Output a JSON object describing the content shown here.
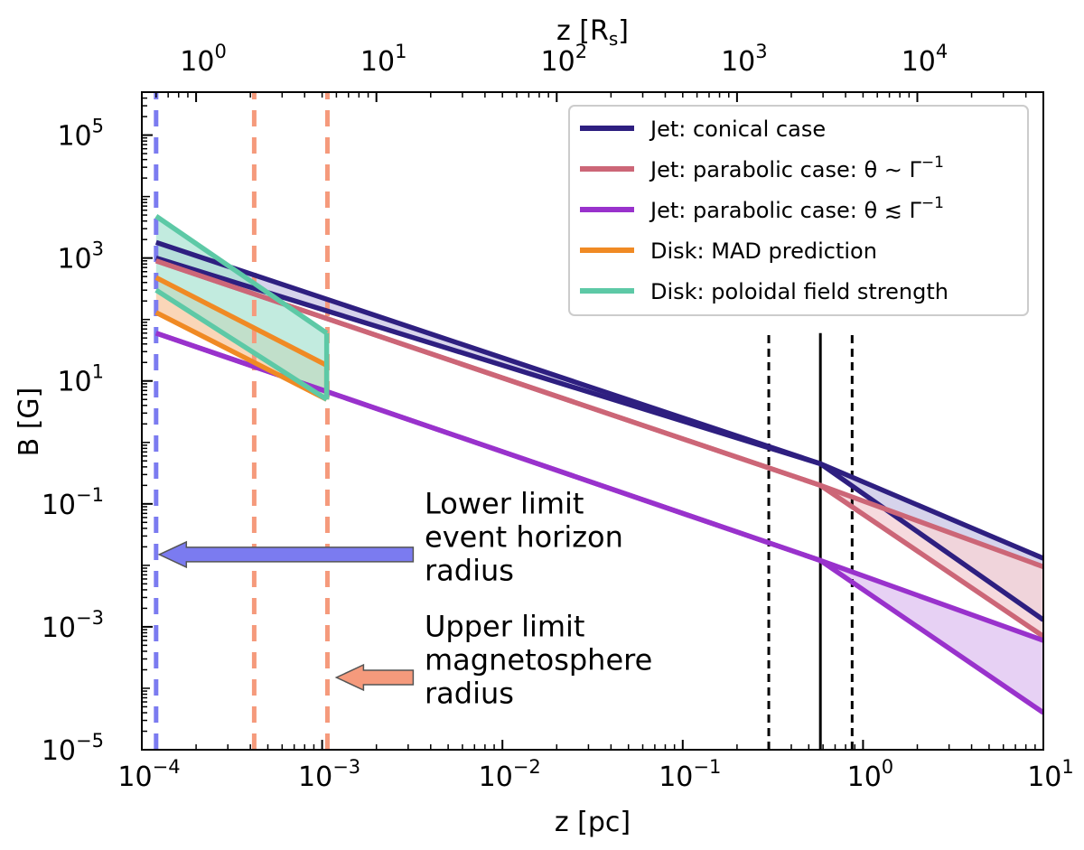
{
  "chart_data": {
    "type": "line",
    "xscale": "log",
    "yscale": "log",
    "xlabel": "z [pc]",
    "ylabel": "B [G]",
    "top_xlabel": "z [R",
    "top_xlabel_sub": "s",
    "top_xlabel_end": "]",
    "xlim": [
      0.0001,
      10
    ],
    "ylim": [
      1e-05,
      500000
    ],
    "top_axis_rs_per_pc": 5000,
    "x_ticks": [
      {
        "value": 0.0001,
        "base": "10",
        "exp": "−4"
      },
      {
        "value": 0.001,
        "base": "10",
        "exp": "−3"
      },
      {
        "value": 0.01,
        "base": "10",
        "exp": "−2"
      },
      {
        "value": 0.1,
        "base": "10",
        "exp": "−1"
      },
      {
        "value": 1,
        "base": "10",
        "exp": "0"
      },
      {
        "value": 10,
        "base": "10",
        "exp": "1"
      }
    ],
    "y_ticks": [
      {
        "value": 1e-05,
        "base": "10",
        "exp": "−5"
      },
      {
        "value": 0.001,
        "base": "10",
        "exp": "−3"
      },
      {
        "value": 0.1,
        "base": "10",
        "exp": "−1"
      },
      {
        "value": 10,
        "base": "10",
        "exp": "1"
      },
      {
        "value": 1000,
        "base": "10",
        "exp": "3"
      },
      {
        "value": 100000,
        "base": "10",
        "exp": "5"
      }
    ],
    "top_ticks": [
      {
        "value": 1,
        "base": "10",
        "exp": "0"
      },
      {
        "value": 10,
        "base": "10",
        "exp": "1"
      },
      {
        "value": 100,
        "base": "10",
        "exp": "2"
      },
      {
        "value": 1000,
        "base": "10",
        "exp": "3"
      },
      {
        "value": 10000,
        "base": "10",
        "exp": "4"
      }
    ],
    "bands": [
      {
        "name": "Jet: conical case",
        "color": "#2e1f80",
        "fill": "#cfcbe8",
        "upper": {
          "x": [
            0.00012,
            0.58,
            10
          ],
          "y": [
            1800,
            0.45,
            0.013
          ]
        },
        "lower": {
          "x": [
            0.00012,
            0.58,
            10
          ],
          "y": [
            1000,
            0.45,
            0.0013
          ]
        },
        "fill_alpha": 0.85
      },
      {
        "name": "Jet: parabolic case: θ ~ Γ⁻¹",
        "color": "#cc6677",
        "fill": "#f5d3d8",
        "upper": {
          "x": [
            0.00012,
            0.58,
            10
          ],
          "y": [
            900,
            0.2,
            0.0095
          ]
        },
        "lower": {
          "x": [
            0.00012,
            0.58,
            10
          ],
          "y": [
            900,
            0.2,
            0.0007
          ]
        },
        "fill_alpha": 0.85
      },
      {
        "name": "Jet: parabolic case: θ ≲ Γ⁻¹",
        "color": "#9932cc",
        "fill": "#e3c9f2",
        "upper": {
          "x": [
            0.00012,
            0.58,
            10
          ],
          "y": [
            60,
            0.012,
            0.0006
          ]
        },
        "lower": {
          "x": [
            0.00012,
            0.58,
            10
          ],
          "y": [
            60,
            0.012,
            4e-05
          ]
        },
        "fill_alpha": 0.85
      },
      {
        "name": "Disk: MAD prediction",
        "color": "#f08a24",
        "fill": "#f8c8a0",
        "upper": {
          "x": [
            0.00012,
            0.00106
          ],
          "y": [
            480,
            18
          ]
        },
        "lower": {
          "x": [
            0.00012,
            0.00106
          ],
          "y": [
            130,
            5
          ]
        },
        "fill_alpha": 0.75
      },
      {
        "name": "Disk: poloidal field strength",
        "color": "#5dc9a6",
        "fill": "#a8e3d1",
        "upper": {
          "x": [
            0.00012,
            0.00106
          ],
          "y": [
            4800,
            60
          ]
        },
        "lower": {
          "x": [
            0.00012,
            0.00106
          ],
          "y": [
            300,
            5
          ]
        },
        "fill_alpha": 0.7
      }
    ],
    "vlines": [
      {
        "x": 0.00012,
        "color": "#7b7bf0",
        "style": "dashed",
        "width": 5
      },
      {
        "x": 0.00042,
        "color": "#f59a7c",
        "style": "dashed",
        "width": 5
      },
      {
        "x": 0.00107,
        "color": "#f59a7c",
        "style": "dashed",
        "width": 5
      },
      {
        "x": 0.3,
        "color": "#000000",
        "style": "dashed-thin",
        "width": 3,
        "ymax": 60
      },
      {
        "x": 0.58,
        "color": "#000000",
        "style": "solid",
        "width": 3,
        "ymax": 60
      },
      {
        "x": 0.87,
        "color": "#000000",
        "style": "dashed-thin",
        "width": 3,
        "ymax": 60
      }
    ],
    "legend": {
      "placement": "top-right",
      "entries": [
        {
          "label": "Jet: conical case",
          "color": "#2e1f80"
        },
        {
          "label": "Jet: parabolic case: θ ∼ Γ",
          "sup": "−1",
          "color": "#cc6677"
        },
        {
          "label": "Jet: parabolic case: θ ≲ Γ",
          "sup": "−1",
          "color": "#9932cc"
        },
        {
          "label": "Disk: MAD prediction",
          "color": "#f08a24"
        },
        {
          "label": "Disk: poloidal field strength",
          "color": "#5dc9a6"
        }
      ]
    },
    "annotations": [
      {
        "lines": [
          "Lower limit",
          "event horizon",
          "radius"
        ],
        "arrow_color": "#7b7bf0",
        "arrow_from": {
          "x": 0.0032,
          "y": 0.015
        },
        "arrow_to": {
          "x": 0.000125,
          "y": 0.015
        },
        "text_at": {
          "x": 0.0037,
          "y": 0.07
        }
      },
      {
        "lines": [
          "Upper limit",
          "magnetosphere",
          "radius"
        ],
        "arrow_color": "#f59a7c",
        "arrow_from": {
          "x": 0.0032,
          "y": 0.00015
        },
        "arrow_to": {
          "x": 0.0012,
          "y": 0.00015
        },
        "text_at": {
          "x": 0.0037,
          "y": 0.0007
        }
      }
    ]
  }
}
